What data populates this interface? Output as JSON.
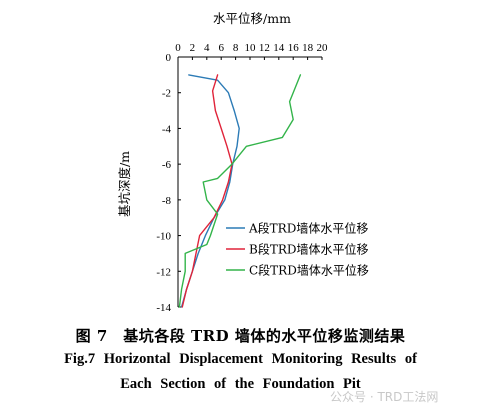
{
  "chart_data": {
    "type": "line",
    "xlabel": "水平位移/mm",
    "ylabel": "基坑深度/m",
    "xlim": [
      0,
      20
    ],
    "ylim": [
      0,
      -14
    ],
    "x_ticks": [
      "0",
      "2",
      "4",
      "6",
      "8",
      "10",
      "12",
      "14",
      "16",
      "18",
      "20"
    ],
    "y_ticks": [
      "0",
      "-2",
      "-4",
      "-6",
      "-8",
      "-10",
      "-12",
      "-14"
    ],
    "legend_position": "bottom-right",
    "series": [
      {
        "name": "A段TRD墙体水平位移",
        "color": "#2c7bb6",
        "points": [
          [
            1.5,
            -1.0
          ],
          [
            5.5,
            -1.3
          ],
          [
            7.0,
            -2.0
          ],
          [
            7.8,
            -3.0
          ],
          [
            8.5,
            -4.0
          ],
          [
            8.2,
            -5.0
          ],
          [
            7.6,
            -6.0
          ],
          [
            7.2,
            -7.0
          ],
          [
            6.5,
            -8.0
          ],
          [
            5.0,
            -9.0
          ],
          [
            3.8,
            -10.0
          ],
          [
            2.8,
            -11.0
          ],
          [
            2.0,
            -12.0
          ],
          [
            1.2,
            -13.0
          ],
          [
            0.5,
            -14.0
          ]
        ]
      },
      {
        "name": "B段TRD墙体水平位移",
        "color": "#e0243a",
        "points": [
          [
            5.5,
            -1.0
          ],
          [
            4.8,
            -1.9
          ],
          [
            5.2,
            -3.0
          ],
          [
            6.0,
            -4.0
          ],
          [
            6.8,
            -5.0
          ],
          [
            7.5,
            -6.0
          ],
          [
            7.0,
            -7.0
          ],
          [
            6.2,
            -8.0
          ],
          [
            5.0,
            -9.0
          ],
          [
            3.0,
            -10.0
          ],
          [
            2.5,
            -11.0
          ],
          [
            2.0,
            -12.0
          ],
          [
            1.2,
            -13.0
          ],
          [
            0.6,
            -14.0
          ]
        ]
      },
      {
        "name": "C段TRD墙体水平位移",
        "color": "#33b44a",
        "points": [
          [
            17.0,
            -1.0
          ],
          [
            15.5,
            -2.5
          ],
          [
            16.0,
            -3.5
          ],
          [
            14.5,
            -4.5
          ],
          [
            9.5,
            -5.0
          ],
          [
            7.5,
            -6.0
          ],
          [
            5.5,
            -6.8
          ],
          [
            3.5,
            -7.0
          ],
          [
            4.0,
            -8.0
          ],
          [
            5.5,
            -8.8
          ],
          [
            4.5,
            -10.0
          ],
          [
            4.0,
            -10.5
          ],
          [
            1.0,
            -11.0
          ],
          [
            1.0,
            -12.0
          ],
          [
            0.5,
            -13.0
          ],
          [
            0.2,
            -14.0
          ]
        ]
      }
    ]
  },
  "caption": {
    "chinese": "图 7　基坑各段 TRD 墙体的水平位移监测结果",
    "english_line1": "Fig.7   Horizontal Displacement Monitoring Results of",
    "english_line2": "Each Section of the Foundation Pit"
  },
  "watermark": "公众号 · TRD工法网"
}
